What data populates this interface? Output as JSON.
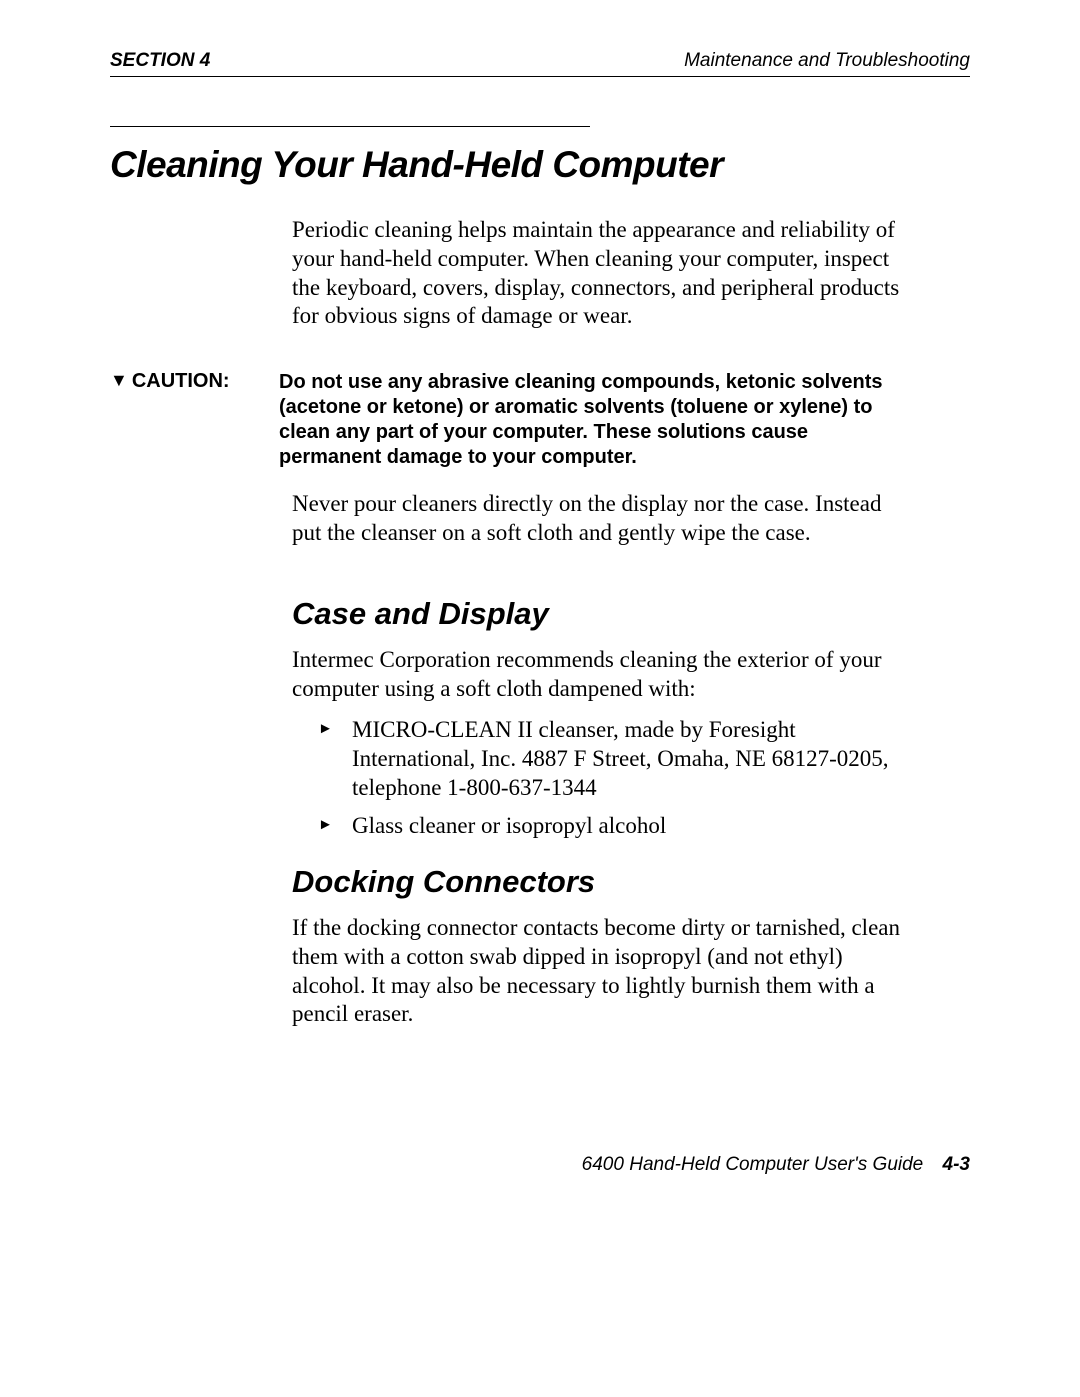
{
  "header": {
    "section_label": "SECTION",
    "section_number": "4",
    "chapter": "Maintenance and Troubleshooting"
  },
  "title": "Cleaning Your Hand-Held Computer",
  "intro": "Periodic cleaning helps maintain the appearance and reliability of your hand-held computer. When cleaning your computer, inspect the keyboard, covers, display, connectors, and peripheral products for obvious signs of damage or wear.",
  "caution": {
    "label": "CAUTION:",
    "text": "Do not use any abrasive cleaning compounds, ketonic solvents (acetone or ketone) or aromatic solvents (toluene or xylene) to clean any part of your computer. These solutions cause permanent damage to your computer."
  },
  "never": "Never pour cleaners directly on the display nor the case. Instead put the cleanser on a soft cloth and gently wipe the case.",
  "case_display": {
    "heading": "Case and Display",
    "intro": "Intermec Corporation recommends cleaning the exterior of your computer using a soft cloth dampened with:",
    "items": [
      "MICRO-CLEAN II cleanser, made by Foresight International, Inc. 4887 F Street, Omaha, NE 68127-0205, telephone 1-800-637-1344",
      "Glass cleaner or isopropyl alcohol"
    ]
  },
  "docking": {
    "heading": "Docking Connectors",
    "text": "If the docking connector contacts become dirty or tarnished, clean them with a cotton swab dipped in isopropyl (and not ethyl) alcohol. It may also be necessary to lightly burnish them with a pencil eraser."
  },
  "footer": {
    "guide": "6400 Hand-Held Computer User's Guide",
    "page": "4-3"
  }
}
